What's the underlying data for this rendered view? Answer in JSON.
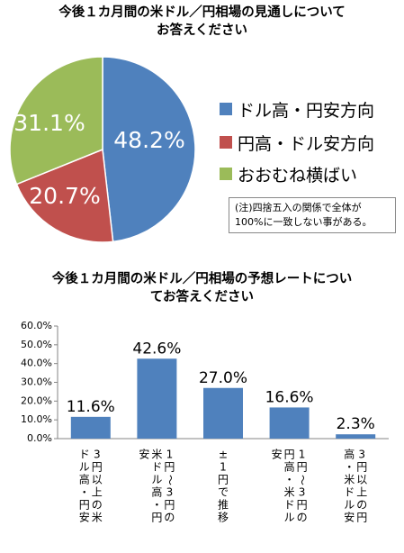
{
  "chart_data": [
    {
      "type": "pie",
      "title": "今後１カ月間の米ドル／円相場の見通しについてお答えください",
      "title_lines": [
        "今後１カ月間の米ドル／円相場の見通しについて",
        "お答えください"
      ],
      "slices": [
        {
          "label": "ドル高・円安方向",
          "value": 48.2,
          "value_label": "48.2%",
          "color": "#4f81bd"
        },
        {
          "label": "円高・ドル安方向",
          "value": 20.7,
          "value_label": "20.7%",
          "color": "#c0504d"
        },
        {
          "label": "おおむね横ばい",
          "value": 31.1,
          "value_label": "31.1%",
          "color": "#9bbb59"
        }
      ],
      "legend_position": "right",
      "note_lines": [
        "(注)四捨五入の関係で全体が",
        "100%に一致しない事がある。"
      ]
    },
    {
      "type": "bar",
      "title": "今後１カ月間の米ドル／円相場の予想レートについてお答えください",
      "title_lines": [
        "今後１カ月間の米ドル／円相場の予想レートについ",
        "てお答えください"
      ],
      "categories": [
        "3円以上の米ドル高・円安",
        "1円～3円の米ドル高・円安",
        "±1円で推移",
        "1円～3円の円高・米ドル安",
        "3円以上の円高・米ドル安"
      ],
      "values": [
        11.6,
        42.6,
        27.0,
        16.6,
        2.3
      ],
      "value_labels": [
        "11.6%",
        "42.6%",
        "27.0%",
        "16.6%",
        "2.3%"
      ],
      "y_ticks": [
        "0.0%",
        "10.0%",
        "20.0%",
        "30.0%",
        "40.0%",
        "50.0%",
        "60.0%"
      ],
      "ylim": [
        0,
        60
      ],
      "bar_color": "#4f81bd",
      "grid": false
    }
  ]
}
